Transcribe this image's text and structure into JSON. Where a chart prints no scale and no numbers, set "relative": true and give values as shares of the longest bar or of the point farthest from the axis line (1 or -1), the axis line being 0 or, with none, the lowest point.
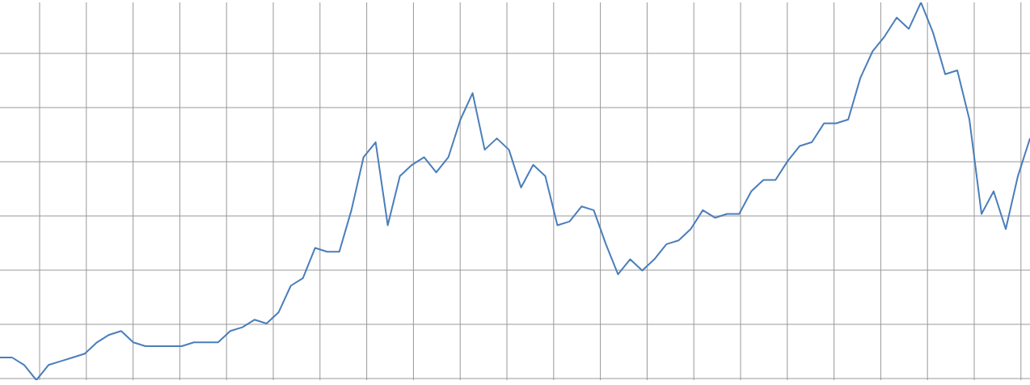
{
  "chart_data": {
    "type": "line",
    "relative": true,
    "grid": true,
    "marker": "none",
    "line_style": "solid",
    "categories": [
      null,
      null,
      null,
      null,
      null,
      null,
      null,
      null,
      null,
      null,
      null,
      null,
      null,
      null,
      null,
      null,
      null,
      null,
      null,
      null,
      null,
      null,
      null,
      null,
      null,
      null,
      null,
      null,
      null,
      null,
      null,
      null,
      null,
      null,
      null,
      null,
      null,
      null,
      null,
      null,
      null,
      null,
      null,
      null,
      null,
      null,
      null,
      null,
      null,
      null,
      null,
      null,
      null,
      null,
      null,
      null,
      null,
      null,
      null,
      null,
      null,
      null,
      null,
      null,
      null,
      null,
      null,
      null,
      null,
      null,
      null,
      null,
      null,
      null,
      null,
      null,
      null,
      null,
      null,
      null,
      null,
      null,
      null,
      null,
      null,
      null
    ],
    "series": [
      {
        "color": "#4a7ebb",
        "values": [
          0.06,
          0.06,
          0.04,
          0,
          0.04,
          0.05,
          0.06,
          0.07,
          0.1,
          0.12,
          0.13,
          0.1,
          0.09,
          0.09,
          0.09,
          0.09,
          0.1,
          0.1,
          0.1,
          0.13,
          0.14,
          0.16,
          0.15,
          0.18,
          0.25,
          0.27,
          0.35,
          0.34,
          0.34,
          0.45,
          0.59,
          0.63,
          0.41,
          0.54,
          0.57,
          0.59,
          0.55,
          0.59,
          0.69,
          0.76,
          0.61,
          0.64,
          0.61,
          0.51,
          0.57,
          0.54,
          0.41,
          0.42,
          0.46,
          0.45,
          0.36,
          0.28,
          0.32,
          0.29,
          0.32,
          0.36,
          0.37,
          0.4,
          0.45,
          0.43,
          0.44,
          0.44,
          0.5,
          0.53,
          0.53,
          0.58,
          0.62,
          0.63,
          0.68,
          0.68,
          0.69,
          0.8,
          0.87,
          0.91,
          0.96,
          0.93,
          1,
          0.92,
          0.81,
          0.82,
          0.69,
          0.44,
          0.5,
          0.4,
          0.54,
          0.64
        ]
      }
    ]
  }
}
